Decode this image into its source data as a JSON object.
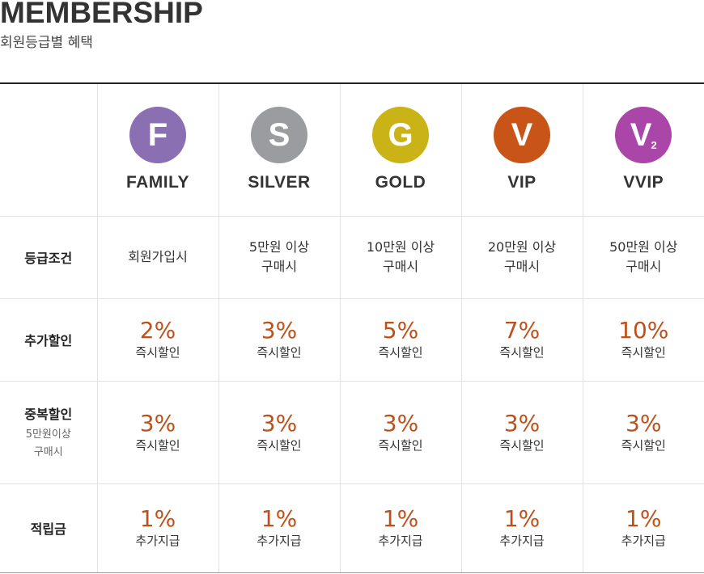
{
  "header": {
    "title": "MEMBERSHIP",
    "subtitle": "회원등급별 혜택"
  },
  "grades": [
    {
      "letter": "F",
      "sub": "",
      "name": "FAMILY",
      "color": "#8a6fb3"
    },
    {
      "letter": "S",
      "sub": "",
      "name": "SILVER",
      "color": "#9a9ca0"
    },
    {
      "letter": "G",
      "sub": "",
      "name": "GOLD",
      "color": "#c9b316"
    },
    {
      "letter": "V",
      "sub": "",
      "name": "VIP",
      "color": "#c95418"
    },
    {
      "letter": "V",
      "sub": "2",
      "name": "VVIP",
      "color": "#a946a8"
    }
  ],
  "rows": {
    "condition": {
      "label": "등급조건",
      "cells": [
        [
          "회원가입시",
          ""
        ],
        [
          "5만원 이상",
          "구매시"
        ],
        [
          "10만원 이상",
          "구매시"
        ],
        [
          "20만원 이상",
          "구매시"
        ],
        [
          "50만원 이상",
          "구매시"
        ]
      ]
    },
    "extra_discount": {
      "label": "추가할인",
      "cells": [
        [
          "2%",
          "즉시할인"
        ],
        [
          "3%",
          "즉시할인"
        ],
        [
          "5%",
          "즉시할인"
        ],
        [
          "7%",
          "즉시할인"
        ],
        [
          "10%",
          "즉시할인"
        ]
      ]
    },
    "dup_discount": {
      "label": "중복할인",
      "sub1": "5만원이상",
      "sub2": "구매시",
      "cells": [
        [
          "3%",
          "즉시할인"
        ],
        [
          "3%",
          "즉시할인"
        ],
        [
          "3%",
          "즉시할인"
        ],
        [
          "3%",
          "즉시할인"
        ],
        [
          "3%",
          "즉시할인"
        ]
      ]
    },
    "points": {
      "label": "적립금",
      "cells": [
        [
          "1%",
          "추가지급"
        ],
        [
          "1%",
          "추가지급"
        ],
        [
          "1%",
          "추가지급"
        ],
        [
          "1%",
          "추가지급"
        ],
        [
          "1%",
          "추가지급"
        ]
      ]
    }
  }
}
